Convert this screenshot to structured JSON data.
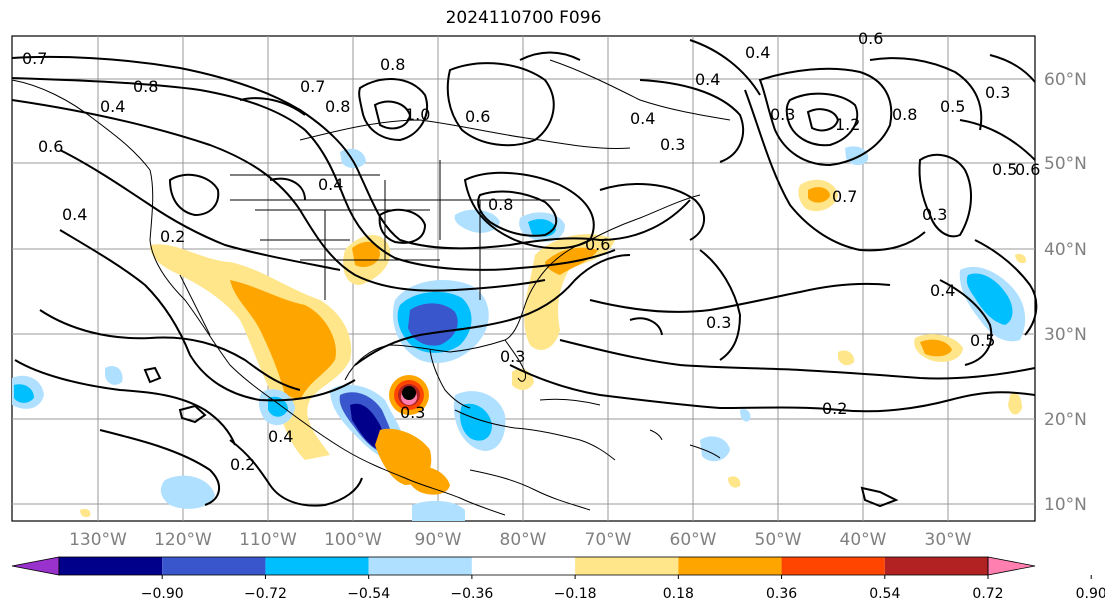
{
  "title": "2024110700 F096",
  "longitude_labels": [
    "130°W",
    "120°W",
    "110°W",
    "100°W",
    "90°W",
    "80°W",
    "70°W",
    "60°W",
    "50°W",
    "40°W",
    "30°W"
  ],
  "latitude_labels": [
    "60°N",
    "50°N",
    "40°N",
    "30°N",
    "20°N",
    "10°N"
  ],
  "contour_labels": [
    "0.7",
    "0.8",
    "0.8",
    "0.7",
    "0.8",
    "1.0",
    "0.6",
    "0.4",
    "0.3",
    "0.4",
    "0.3",
    "0.4",
    "0.6",
    "1.2",
    "0.8",
    "0.5",
    "0.3",
    "0.5",
    "0.6",
    "0.3",
    "0.6",
    "0.4",
    "0.4",
    "0.2",
    "0.4",
    "0.8",
    "0.6",
    "0.3",
    "0.7",
    "0.4",
    "0.5",
    "0.3",
    "0.2",
    "0.3",
    "0.4",
    "0.2"
  ],
  "colorbar": {
    "tick_labels": [
      "−0.90",
      "−0.72",
      "−0.54",
      "−0.36",
      "−0.18",
      "0.18",
      "0.36",
      "0.54",
      "0.72",
      "0.90"
    ],
    "colors": [
      "#9932cc",
      "#00008b",
      "#3a56cc",
      "#00bfff",
      "#b0e0ff",
      "#ffffff",
      "#ffe68a",
      "#ffa500",
      "#ff4500",
      "#b22222",
      "#ff80b0"
    ]
  }
}
